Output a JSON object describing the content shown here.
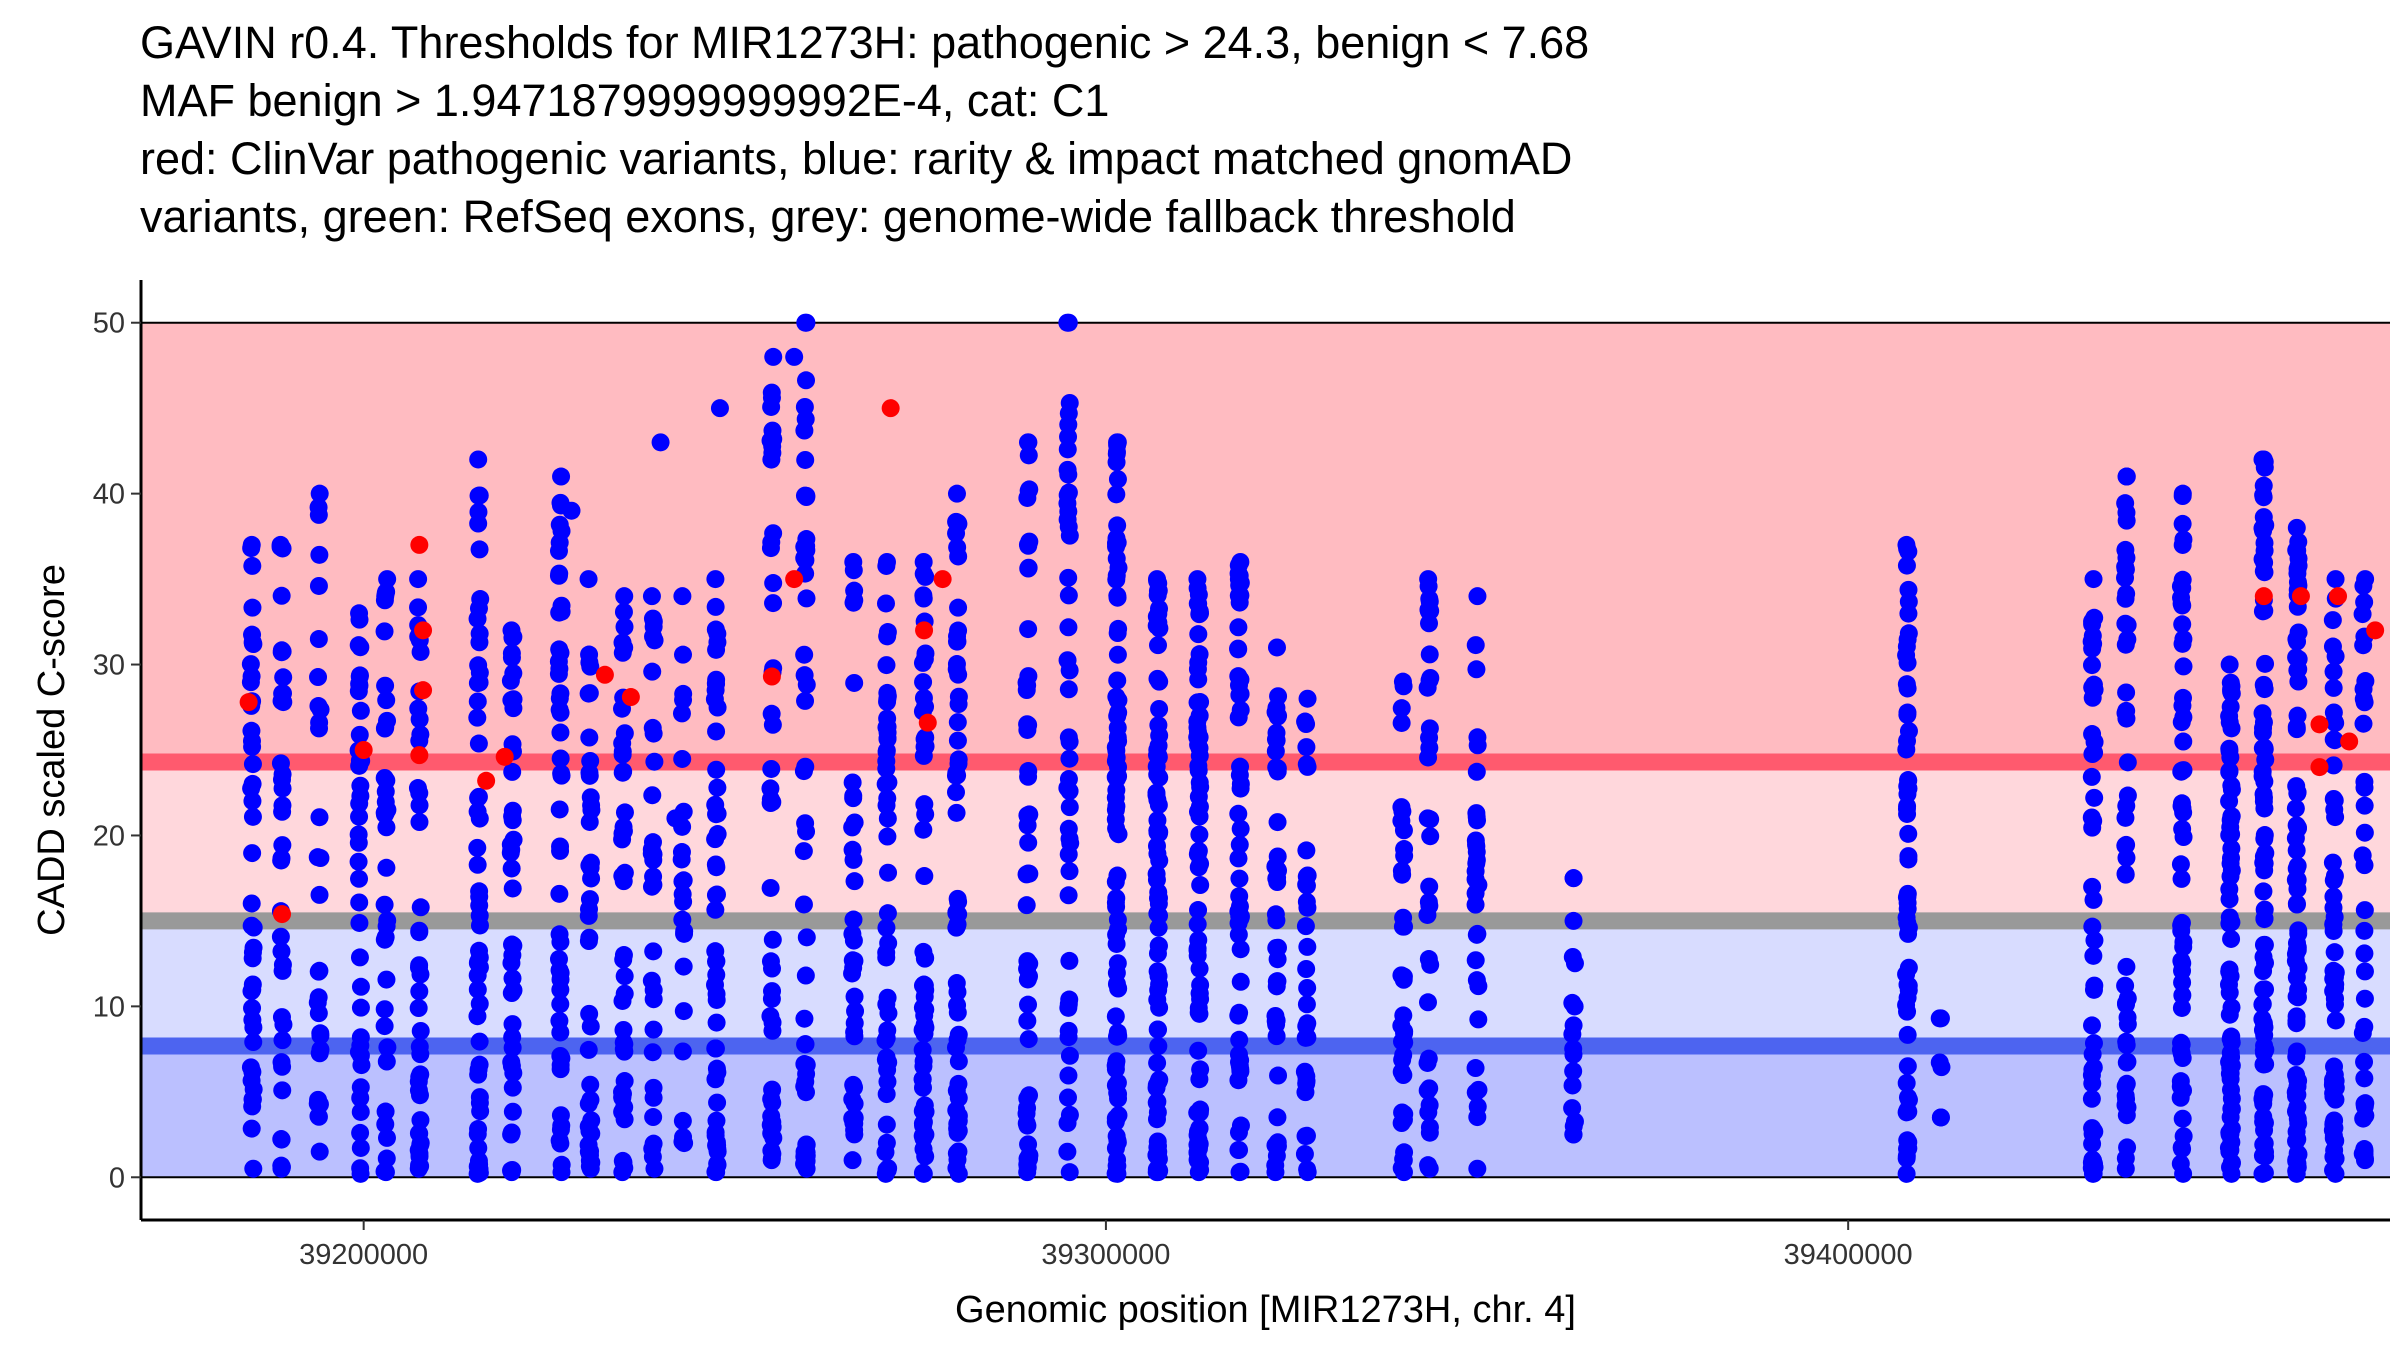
{
  "title_lines": [
    "GAVIN r0.4. Thresholds for MIR1273H: pathogenic > 24.3, benign < 7.68",
    "MAF benign > 1.9471879999999992E-4, cat: C1",
    "red: ClinVar pathogenic variants, blue: rarity & impact matched gnomAD",
    "variants, green: RefSeq exons, grey: genome-wide fallback threshold"
  ],
  "chart_data": {
    "type": "scatter",
    "xlabel": "Genomic position [MIR1273H, chr. 4]",
    "ylabel": "CADD scaled C-score",
    "xlim": [
      39170000,
      39473000
    ],
    "ylim": [
      -2.5,
      52.5
    ],
    "x_ticks": [
      39200000,
      39300000,
      39400000
    ],
    "x_tick_labels": [
      "39200000",
      "39300000",
      "39400000"
    ],
    "y_ticks": [
      0,
      10,
      20,
      30,
      40,
      50
    ],
    "y_tick_labels": [
      "0",
      "10",
      "20",
      "30",
      "40",
      "50"
    ],
    "thresholds": {
      "pathogenic": 24.3,
      "benign": 7.68,
      "fallback": 15.0
    },
    "bands": [
      {
        "name": "pathogenic-zone",
        "from": 24.3,
        "to": 50,
        "color": "#FFBBC1"
      },
      {
        "name": "pathogenic-uncertain-zone",
        "from": 15.0,
        "to": 24.3,
        "color": "#FFD7DC"
      },
      {
        "name": "benign-uncertain-zone",
        "from": 7.68,
        "to": 15.0,
        "color": "#D8DCFF"
      },
      {
        "name": "benign-zone",
        "from": 0,
        "to": 7.68,
        "color": "#BBC0FF"
      }
    ],
    "threshold_lines": [
      {
        "name": "pathogenic-threshold-line",
        "value": 24.3,
        "color": "#FF5A6E"
      },
      {
        "name": "fallback-threshold-line",
        "value": 15.0,
        "color": "#999999"
      },
      {
        "name": "benign-threshold-line",
        "value": 7.68,
        "color": "#4D64F0"
      }
    ],
    "series": [
      {
        "name": "gnomAD variants",
        "color": "#0000FF",
        "columns": [
          {
            "x": 39185000,
            "min": 0.5,
            "max": 37,
            "n": 42
          },
          {
            "x": 39189000,
            "min": 0.5,
            "max": 37,
            "n": 36
          },
          {
            "x": 39194000,
            "min": 1.5,
            "max": 40,
            "n": 28
          },
          {
            "x": 39199500,
            "min": 0.2,
            "max": 33,
            "n": 38
          },
          {
            "x": 39203000,
            "min": 0.3,
            "max": 35,
            "n": 35
          },
          {
            "x": 39207500,
            "min": 0.5,
            "max": 35,
            "n": 40
          },
          {
            "x": 39215500,
            "min": 0.2,
            "max": 42,
            "n": 55
          },
          {
            "x": 39220000,
            "min": 0.3,
            "max": 32,
            "n": 40
          },
          {
            "x": 39226500,
            "min": 0.3,
            "max": 41,
            "n": 48
          },
          {
            "x": 39230500,
            "min": 0.5,
            "max": 35,
            "n": 40
          },
          {
            "x": 39235000,
            "min": 0.3,
            "max": 34,
            "n": 42
          },
          {
            "x": 39239000,
            "min": 0.5,
            "max": 34,
            "n": 30
          },
          {
            "x": 39243000,
            "min": 2,
            "max": 34,
            "n": 22
          },
          {
            "x": 39247500,
            "min": 0.3,
            "max": 35,
            "n": 50
          },
          {
            "x": 39255000,
            "min": 1,
            "max": 48,
            "n": 45
          },
          {
            "x": 39259500,
            "min": 0.5,
            "max": 50,
            "n": 50
          },
          {
            "x": 39266000,
            "min": 1,
            "max": 36,
            "n": 35
          },
          {
            "x": 39270500,
            "min": 0.2,
            "max": 36,
            "n": 50
          },
          {
            "x": 39275500,
            "min": 0.2,
            "max": 36,
            "n": 55
          },
          {
            "x": 39280000,
            "min": 0.2,
            "max": 40,
            "n": 55
          },
          {
            "x": 39289500,
            "min": 0.3,
            "max": 43,
            "n": 50
          },
          {
            "x": 39295000,
            "min": 0.3,
            "max": 50,
            "n": 45
          },
          {
            "x": 39301500,
            "min": 0.2,
            "max": 43,
            "n": 85
          },
          {
            "x": 39307000,
            "min": 0.3,
            "max": 35,
            "n": 80
          },
          {
            "x": 39312500,
            "min": 0.3,
            "max": 35,
            "n": 75
          },
          {
            "x": 39318000,
            "min": 0.3,
            "max": 36,
            "n": 55
          },
          {
            "x": 39323000,
            "min": 0.3,
            "max": 31,
            "n": 40
          },
          {
            "x": 39327000,
            "min": 0.3,
            "max": 28,
            "n": 30
          },
          {
            "x": 39340000,
            "min": 0.3,
            "max": 29,
            "n": 35
          },
          {
            "x": 39343500,
            "min": 0.5,
            "max": 35,
            "n": 35
          },
          {
            "x": 39350000,
            "min": 0.5,
            "max": 34,
            "n": 30
          },
          {
            "x": 39363000,
            "min": 2.5,
            "max": 17.5,
            "n": 14
          },
          {
            "x": 39408000,
            "min": 0.2,
            "max": 37,
            "n": 60
          },
          {
            "x": 39412500,
            "min": 3.5,
            "max": 9.3,
            "n": 2
          },
          {
            "x": 39433000,
            "min": 0.2,
            "max": 35,
            "n": 48
          },
          {
            "x": 39437500,
            "min": 0.5,
            "max": 41,
            "n": 48
          },
          {
            "x": 39445000,
            "min": 0.2,
            "max": 40,
            "n": 55
          },
          {
            "x": 39451500,
            "min": 0.2,
            "max": 30,
            "n": 70
          },
          {
            "x": 39456000,
            "min": 0.2,
            "max": 42,
            "n": 85
          },
          {
            "x": 39460500,
            "min": 0.2,
            "max": 38,
            "n": 80
          },
          {
            "x": 39465500,
            "min": 0.2,
            "max": 35,
            "n": 60
          },
          {
            "x": 39469500,
            "min": 1,
            "max": 35,
            "n": 35
          }
        ],
        "points": [
          {
            "x": 39259500,
            "y": 50
          },
          {
            "x": 39295000,
            "y": 50
          },
          {
            "x": 39258000,
            "y": 48
          },
          {
            "x": 39248000,
            "y": 45
          },
          {
            "x": 39240000,
            "y": 43
          },
          {
            "x": 39289500,
            "y": 43
          },
          {
            "x": 39301500,
            "y": 43
          },
          {
            "x": 39456000,
            "y": 42
          },
          {
            "x": 39437500,
            "y": 41
          },
          {
            "x": 39228000,
            "y": 39
          },
          {
            "x": 39242000,
            "y": 21
          },
          {
            "x": 39363000,
            "y": 17.5
          },
          {
            "x": 39363000,
            "y": 15
          },
          {
            "x": 39412500,
            "y": 9.3
          },
          {
            "x": 39412500,
            "y": 3.5
          }
        ]
      },
      {
        "name": "ClinVar pathogenic variants",
        "color": "#FF0000",
        "points": [
          {
            "x": 39184500,
            "y": 27.8
          },
          {
            "x": 39189000,
            "y": 15.4
          },
          {
            "x": 39200000,
            "y": 25.0
          },
          {
            "x": 39207500,
            "y": 37.0
          },
          {
            "x": 39208000,
            "y": 32.0
          },
          {
            "x": 39208000,
            "y": 28.5
          },
          {
            "x": 39207500,
            "y": 24.7
          },
          {
            "x": 39219000,
            "y": 24.6
          },
          {
            "x": 39216500,
            "y": 23.2
          },
          {
            "x": 39232500,
            "y": 29.4
          },
          {
            "x": 39236000,
            "y": 28.1
          },
          {
            "x": 39255000,
            "y": 29.3
          },
          {
            "x": 39258000,
            "y": 35.0
          },
          {
            "x": 39271000,
            "y": 45.0
          },
          {
            "x": 39275500,
            "y": 32.0
          },
          {
            "x": 39278000,
            "y": 35.0
          },
          {
            "x": 39276000,
            "y": 26.6
          },
          {
            "x": 39456000,
            "y": 34.0
          },
          {
            "x": 39461000,
            "y": 34.0
          },
          {
            "x": 39466000,
            "y": 34.0
          },
          {
            "x": 39467500,
            "y": 25.5
          },
          {
            "x": 39463500,
            "y": 26.5
          },
          {
            "x": 39463500,
            "y": 24.0
          },
          {
            "x": 39471000,
            "y": 32.0
          }
        ]
      }
    ]
  }
}
